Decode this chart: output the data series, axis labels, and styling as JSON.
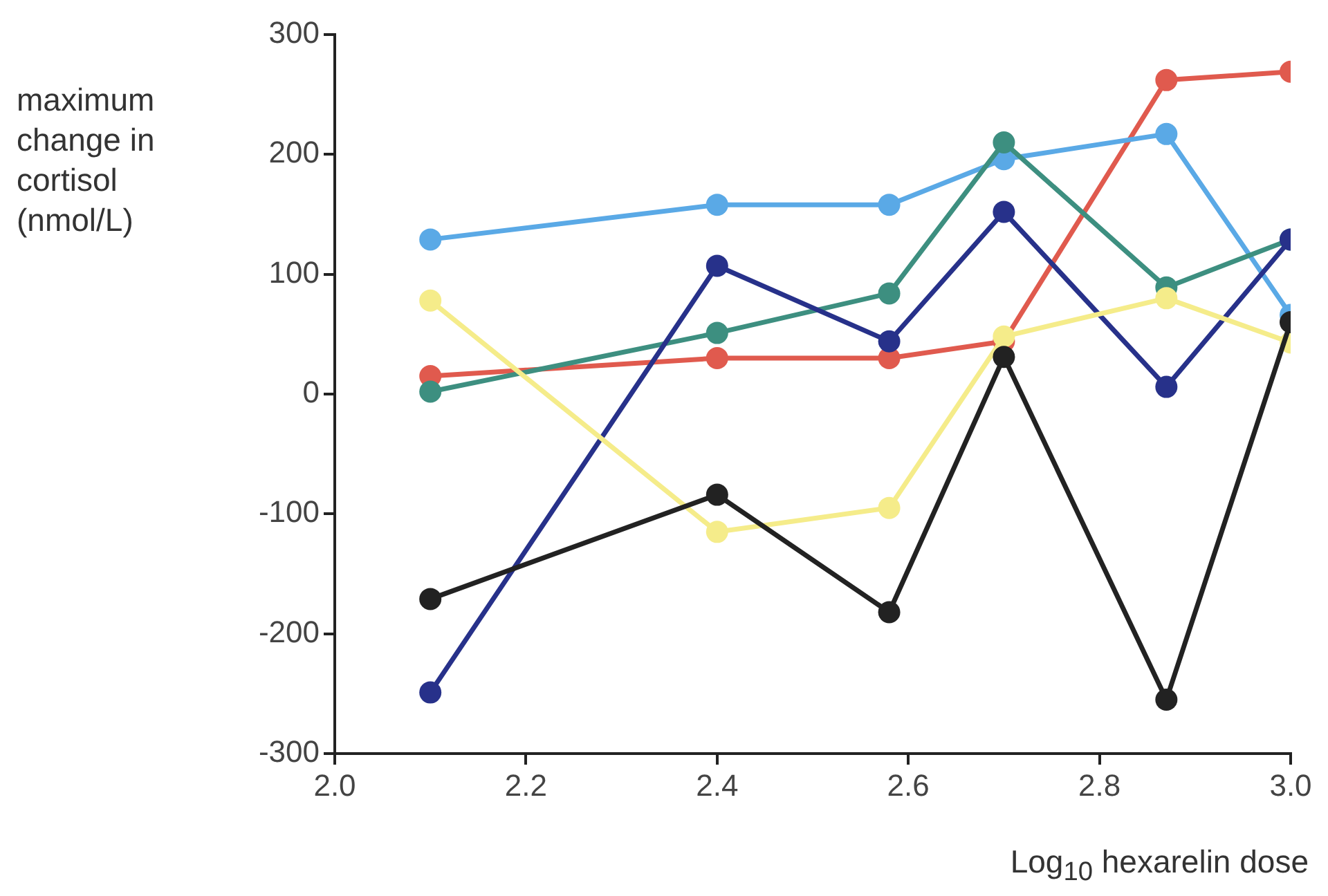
{
  "chart_data": {
    "type": "line",
    "ylabel": "maximum change in cortisol (nmol/L)",
    "xlabel": "Log$_{10}$ hexarelin dose",
    "x": [
      2.1,
      2.4,
      2.58,
      2.7,
      2.87,
      3.0
    ],
    "xlim": [
      2.0,
      3.0
    ],
    "xticks": [
      {
        "value": 2.0,
        "label": "2.0"
      },
      2.2,
      2.4,
      2.6,
      2.8,
      {
        "value": 3.0,
        "label": "3.0"
      }
    ],
    "ylim": [
      -300,
      300
    ],
    "yticks": [
      -300,
      -200,
      -100,
      0,
      100,
      200,
      300
    ],
    "grid": false,
    "legend": false,
    "marker": "circle",
    "line_style": "solid",
    "series": [
      {
        "color": "#222222",
        "values": [
          -171,
          -84,
          -182,
          31,
          -255,
          60
        ]
      },
      {
        "color": "#f5ec8a",
        "values": [
          78,
          -115,
          -95,
          48,
          80,
          43
        ]
      },
      {
        "color": "#27318a",
        "values": [
          -249,
          107,
          44,
          152,
          6,
          129
        ]
      },
      {
        "color": "#3d8f80",
        "values": [
          2,
          51,
          84,
          210,
          89,
          129
        ]
      },
      {
        "color": "#5aa9e6",
        "values": [
          129,
          158,
          158,
          196,
          217,
          66
        ]
      },
      {
        "color": "#e05a4e",
        "values": [
          15,
          30,
          30,
          44,
          262,
          269
        ]
      }
    ]
  }
}
